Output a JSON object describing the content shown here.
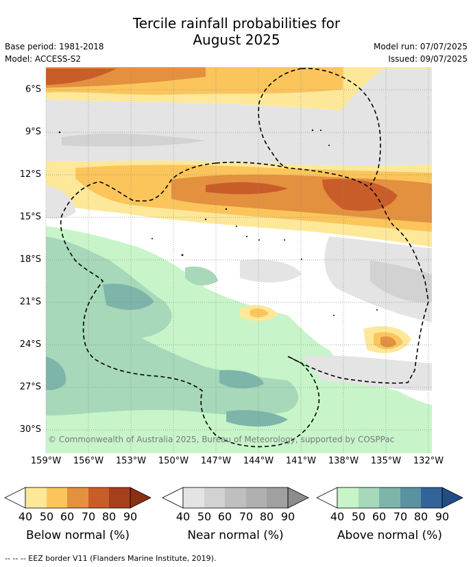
{
  "title": "Tercile rainfall probabilities for",
  "title_line2": "August 2025",
  "base_period": "Base period: 1981-2018",
  "model": "Model: ACCESS-S2",
  "model_run": "Model run: 07/07/2025",
  "issued": "Issued: 09/07/2025",
  "copyright": "© Commonwealth of Australia 2025, Bureau of Meteorology, supported by COSPPac",
  "footer": "-- -- -- EEZ border V11 (Flanders Marine Institute, 2019).",
  "y_ticks": [
    "6°S",
    "9°S",
    "12°S",
    "15°S",
    "18°S",
    "21°S",
    "24°S",
    "27°S",
    "30°S"
  ],
  "x_ticks": [
    "159°W",
    "156°W",
    "153°W",
    "150°W",
    "147°W",
    "144°W",
    "141°W",
    "138°W",
    "135°W",
    "132°W"
  ],
  "colorbars": [
    {
      "title": "Below normal (%)",
      "ticks": [
        "40",
        "50",
        "60",
        "70",
        "80",
        "90"
      ],
      "colors": [
        "#fde89a",
        "#fbc55c",
        "#e3913f",
        "#c95d2a",
        "#a5401c",
        "#8a2f12"
      ]
    },
    {
      "title": "Near normal (%)",
      "ticks": [
        "40",
        "50",
        "60",
        "70",
        "80",
        "90"
      ],
      "colors": [
        "#e4e4e4",
        "#d2d2d2",
        "#bfbfbf",
        "#b0b0b0",
        "#a0a0a0",
        "#8c8c8c"
      ]
    },
    {
      "title": "Above normal (%)",
      "ticks": [
        "40",
        "50",
        "60",
        "70",
        "80",
        "90"
      ],
      "colors": [
        "#c7f5c9",
        "#a7d8b9",
        "#7db5aa",
        "#5b929f",
        "#32649a",
        "#1f4f85"
      ]
    }
  ]
}
